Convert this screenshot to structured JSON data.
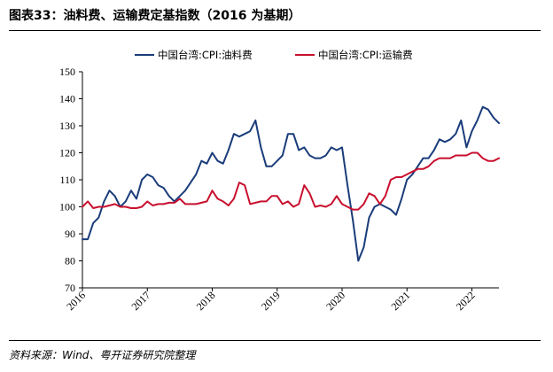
{
  "header": {
    "title": "图表33：油料费、运输费定基指数（2016 为基期）"
  },
  "footer": {
    "source": "资料来源：Wind、粤开证券研究院整理"
  },
  "chart_data": {
    "type": "line",
    "title": "",
    "xlabel": "",
    "ylabel": "",
    "ylim": [
      70,
      150
    ],
    "yticks": [
      70,
      80,
      90,
      100,
      110,
      120,
      130,
      140,
      150
    ],
    "xticks": [
      "2016",
      "2017",
      "2018",
      "2019",
      "2020",
      "2021",
      "2022"
    ],
    "xlim": [
      "2016-01",
      "2022-06"
    ],
    "legend_position": "top-center",
    "grid": false,
    "series": [
      {
        "name": "中国台湾:CPI:油料费",
        "color": "#1a3c7a",
        "x": [
          "2016-01",
          "2016-02",
          "2016-03",
          "2016-04",
          "2016-05",
          "2016-06",
          "2016-07",
          "2016-08",
          "2016-09",
          "2016-10",
          "2016-11",
          "2016-12",
          "2017-01",
          "2017-02",
          "2017-03",
          "2017-04",
          "2017-05",
          "2017-06",
          "2017-07",
          "2017-08",
          "2017-09",
          "2017-10",
          "2017-11",
          "2017-12",
          "2018-01",
          "2018-02",
          "2018-03",
          "2018-04",
          "2018-05",
          "2018-06",
          "2018-07",
          "2018-08",
          "2018-09",
          "2018-10",
          "2018-11",
          "2018-12",
          "2019-01",
          "2019-02",
          "2019-03",
          "2019-04",
          "2019-05",
          "2019-06",
          "2019-07",
          "2019-08",
          "2019-09",
          "2019-10",
          "2019-11",
          "2019-12",
          "2020-01",
          "2020-02",
          "2020-03",
          "2020-04",
          "2020-05",
          "2020-06",
          "2020-07",
          "2020-08",
          "2020-09",
          "2020-10",
          "2020-11",
          "2020-12",
          "2021-01",
          "2021-02",
          "2021-03",
          "2021-04",
          "2021-05",
          "2021-06",
          "2021-07",
          "2021-08",
          "2021-09",
          "2021-10",
          "2021-11",
          "2021-12",
          "2022-01",
          "2022-02",
          "2022-03",
          "2022-04",
          "2022-05",
          "2022-06"
        ],
        "values": [
          88,
          88,
          94,
          96,
          102,
          106,
          104,
          100,
          102,
          106,
          103,
          110,
          112,
          111,
          108,
          107,
          104,
          102,
          104,
          106,
          109,
          112,
          117,
          116,
          120,
          117,
          116,
          121,
          127,
          126,
          127,
          128,
          132,
          122,
          115,
          115,
          117,
          119,
          127,
          127,
          121,
          122,
          119,
          118,
          118,
          119,
          122,
          121,
          122,
          108,
          95,
          80,
          85,
          96,
          100,
          101,
          100,
          99,
          97,
          103,
          110,
          112,
          115,
          118,
          118,
          121,
          125,
          124,
          125,
          127,
          132,
          122,
          128,
          132,
          137,
          136,
          133,
          131
        ]
      },
      {
        "name": "中国台湾:CPI:运输费",
        "color": "#c8102e",
        "x": [
          "2016-01",
          "2016-02",
          "2016-03",
          "2016-04",
          "2016-05",
          "2016-06",
          "2016-07",
          "2016-08",
          "2016-09",
          "2016-10",
          "2016-11",
          "2016-12",
          "2017-01",
          "2017-02",
          "2017-03",
          "2017-04",
          "2017-05",
          "2017-06",
          "2017-07",
          "2017-08",
          "2017-09",
          "2017-10",
          "2017-11",
          "2017-12",
          "2018-01",
          "2018-02",
          "2018-03",
          "2018-04",
          "2018-05",
          "2018-06",
          "2018-07",
          "2018-08",
          "2018-09",
          "2018-10",
          "2018-11",
          "2018-12",
          "2019-01",
          "2019-02",
          "2019-03",
          "2019-04",
          "2019-05",
          "2019-06",
          "2019-07",
          "2019-08",
          "2019-09",
          "2019-10",
          "2019-11",
          "2019-12",
          "2020-01",
          "2020-02",
          "2020-03",
          "2020-04",
          "2020-05",
          "2020-06",
          "2020-07",
          "2020-08",
          "2020-09",
          "2020-10",
          "2020-11",
          "2020-12",
          "2021-01",
          "2021-02",
          "2021-03",
          "2021-04",
          "2021-05",
          "2021-06",
          "2021-07",
          "2021-08",
          "2021-09",
          "2021-10",
          "2021-11",
          "2021-12",
          "2022-01",
          "2022-02",
          "2022-03",
          "2022-04",
          "2022-05",
          "2022-06"
        ],
        "values": [
          100,
          102,
          99.5,
          100,
          100,
          100.5,
          101,
          100,
          100,
          99.5,
          99.5,
          100,
          102,
          100.5,
          101,
          101,
          101.5,
          101.5,
          103,
          101,
          101,
          101,
          101.5,
          102,
          106,
          103,
          102,
          100.5,
          103,
          109,
          108,
          101,
          101.5,
          102,
          102,
          104,
          104,
          101,
          102,
          100,
          101,
          108,
          105,
          100,
          100.5,
          100,
          101,
          104,
          101,
          100,
          99,
          99,
          101,
          105,
          104,
          101,
          104,
          110,
          111,
          111,
          112,
          113,
          114,
          114,
          115,
          117,
          118,
          118,
          118,
          119,
          119,
          119,
          120,
          120,
          118,
          117,
          117,
          118
        ]
      }
    ]
  }
}
